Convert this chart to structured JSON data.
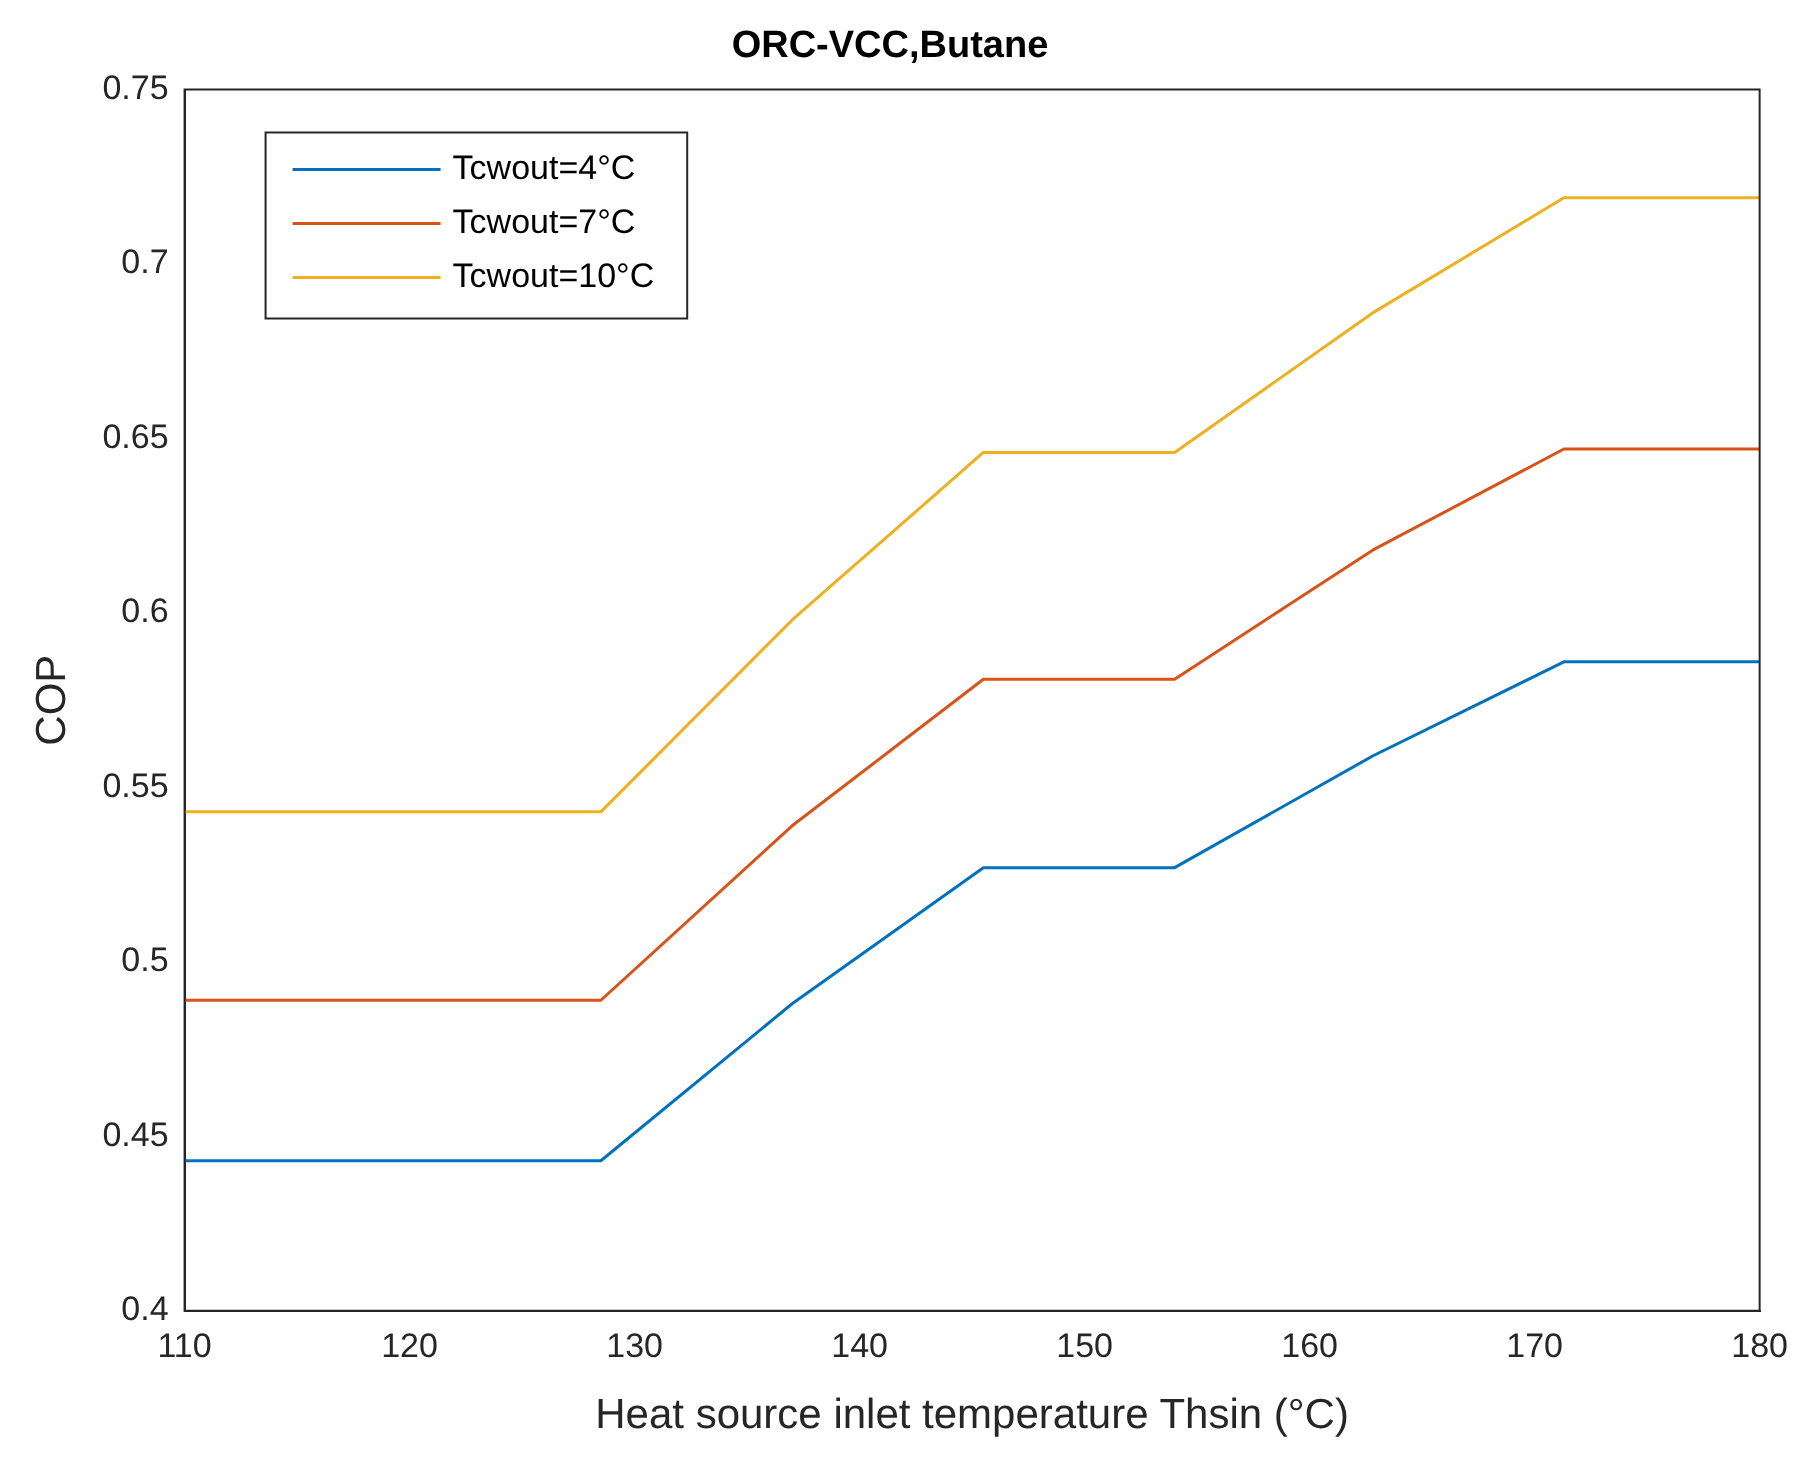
{
  "chart_data": {
    "type": "line",
    "title": "ORC-VCC,Butane",
    "xlabel": "Heat source inlet temperature Thsin (°C)",
    "ylabel": "COP",
    "x": [
      110,
      128.5,
      137,
      145.5,
      154,
      162.8,
      171.3,
      180
    ],
    "series": [
      {
        "name": "Tcwout=4°C",
        "color": "#0072bd",
        "values": [
          0.443,
          0.443,
          0.488,
          0.527,
          0.527,
          0.559,
          0.586,
          0.586
        ]
      },
      {
        "name": "Tcwout=7°C",
        "color": "#d95319",
        "values": [
          0.489,
          0.489,
          0.539,
          0.581,
          0.581,
          0.618,
          0.647,
          0.647
        ]
      },
      {
        "name": "Tcwout=10°C",
        "color": "#edb120",
        "values": [
          0.543,
          0.543,
          0.598,
          0.646,
          0.646,
          0.686,
          0.719,
          0.719
        ]
      }
    ],
    "xlim": [
      110,
      180
    ],
    "xticks": [
      110,
      120,
      130,
      140,
      150,
      160,
      170,
      180
    ],
    "ylim": [
      0.4,
      0.75
    ],
    "yticks": [
      0.4,
      0.45,
      0.5,
      0.55,
      0.6,
      0.65,
      0.7,
      0.75
    ],
    "grid": false,
    "legend": "top left",
    "marker": "none",
    "line_style": "solid"
  }
}
